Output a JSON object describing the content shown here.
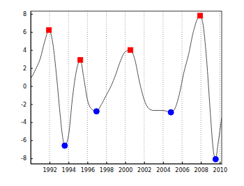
{
  "chart_data": {
    "type": "line",
    "xlim": [
      1990,
      2010.2
    ],
    "ylim": [
      -8.6,
      8.3
    ],
    "xticks": [
      1992,
      1994,
      1996,
      1998,
      2000,
      2002,
      2004,
      2006,
      2008,
      2010
    ],
    "yticks": [
      -8,
      -6,
      -4,
      -2,
      0,
      2,
      4,
      6,
      8
    ],
    "grid": "x",
    "series": [
      {
        "type": "line",
        "color": "#3c3c3c",
        "line_style": "solid",
        "x": [
          1990,
          1990.5,
          1991,
          1991.5,
          1991.93,
          1992.3,
          1992.7,
          1993.1,
          1993.4,
          1993.6,
          1994.0,
          1994.4,
          1994.8,
          1995.25,
          1995.6,
          1996.0,
          1996.5,
          1996.96,
          1997.5,
          1998.0,
          1998.5,
          1999.0,
          1999.5,
          2000.0,
          2000.55,
          2001.0,
          2001.5,
          2002.0,
          2002.5,
          2003.0,
          2003.5,
          2004.0,
          2004.83,
          2005.2,
          2005.7,
          2006.2,
          2006.7,
          2007.2,
          2007.92,
          2008.2,
          2008.6,
          2009.0,
          2009.3,
          2009.56,
          2009.8,
          2010.2
        ],
        "values": [
          0.8,
          1.8,
          3.0,
          5.0,
          6.2,
          5.0,
          1.5,
          -3.0,
          -5.8,
          -6.6,
          -5.5,
          -1.5,
          1.5,
          2.9,
          1.0,
          -1.5,
          -2.6,
          -2.8,
          -2.0,
          -1.0,
          0.0,
          1.3,
          2.8,
          3.8,
          4.0,
          3.0,
          0.5,
          -1.5,
          -2.5,
          -2.7,
          -2.7,
          -2.7,
          -2.9,
          -2.6,
          -1.0,
          1.5,
          3.5,
          6.0,
          7.8,
          7.0,
          3.0,
          -3.0,
          -7.0,
          -8.1,
          -6.5,
          -3.5
        ]
      },
      {
        "type": "scatter",
        "marker": "square",
        "color": "#ff0000",
        "x": [
          1991.93,
          1995.25,
          2000.55,
          2007.92
        ],
        "values": [
          6.2,
          2.9,
          4.0,
          7.8
        ]
      },
      {
        "type": "scatter",
        "marker": "circle",
        "color": "#0000ff",
        "x": [
          1993.6,
          1996.96,
          2004.83,
          2009.56
        ],
        "values": [
          -6.6,
          -2.8,
          -2.9,
          -8.1
        ]
      }
    ]
  }
}
